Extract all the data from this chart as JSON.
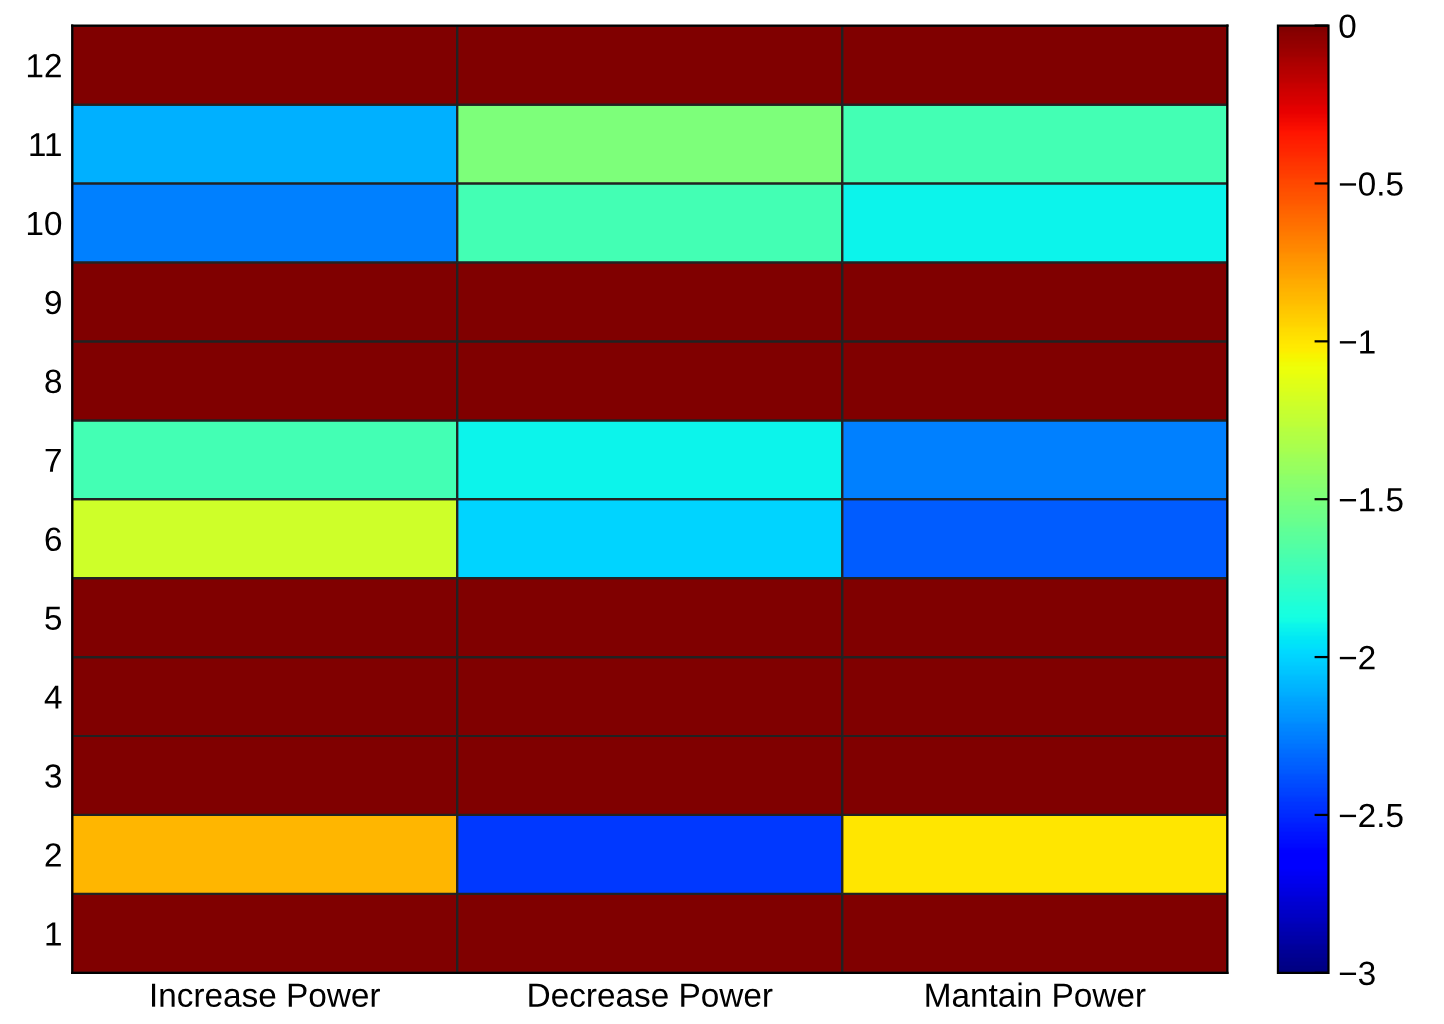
{
  "chart_data": {
    "type": "heatmap",
    "categories": [
      "Increase Power",
      "Decrease Power",
      "Mantain Power"
    ],
    "y_categories": [
      "12",
      "11",
      "10",
      "9",
      "8",
      "7",
      "6",
      "5",
      "4",
      "3",
      "2",
      "1"
    ],
    "cells": [
      [
        0,
        0,
        0
      ],
      [
        -2.1,
        -1.5,
        -1.7
      ],
      [
        -2.25,
        -1.7,
        -1.9
      ],
      [
        0,
        0,
        0
      ],
      [
        0,
        0,
        0
      ],
      [
        -1.7,
        -1.9,
        -2.25
      ],
      [
        -1.2,
        -2.0,
        -2.35
      ],
      [
        0,
        0,
        0
      ],
      [
        0,
        0,
        0
      ],
      [
        0,
        0,
        0
      ],
      [
        -0.85,
        -2.45,
        -1.0
      ],
      [
        0,
        0,
        0
      ]
    ],
    "clim": [
      -3,
      0
    ],
    "cticks": [
      -3,
      -2.5,
      -2,
      -1.5,
      -1,
      -0.5,
      0
    ]
  }
}
